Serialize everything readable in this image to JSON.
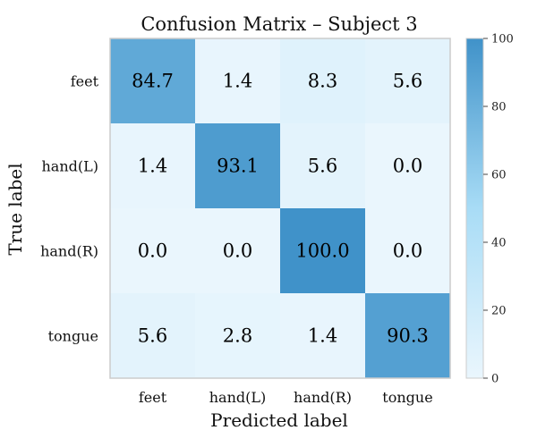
{
  "chart_data": {
    "type": "heatmap",
    "title": "Confusion Matrix – Subject 3",
    "xlabel": "Predicted label",
    "ylabel": "True label",
    "x_categories": [
      "feet",
      "hand(L)",
      "hand(R)",
      "tongue"
    ],
    "y_categories": [
      "feet",
      "hand(L)",
      "hand(R)",
      "tongue"
    ],
    "values": [
      [
        84.7,
        1.4,
        8.3,
        5.6
      ],
      [
        1.4,
        93.1,
        5.6,
        0.0
      ],
      [
        0.0,
        0.0,
        100.0,
        0.0
      ],
      [
        5.6,
        2.8,
        1.4,
        90.3
      ]
    ],
    "value_labels": [
      [
        "84.7",
        "1.4",
        "8.3",
        "5.6"
      ],
      [
        "1.4",
        "93.1",
        "5.6",
        "0.0"
      ],
      [
        "0.0",
        "0.0",
        "100.0",
        "0.0"
      ],
      [
        "5.6",
        "2.8",
        "1.4",
        "90.3"
      ]
    ],
    "colorbar": {
      "range": [
        0,
        100
      ],
      "ticks": [
        0,
        20,
        40,
        60,
        80,
        100
      ],
      "tick_labels": [
        "0",
        "20",
        "40",
        "60",
        "80",
        "100"
      ],
      "colors": [
        "#eaf6fd",
        "#a8dcf6",
        "#4092c9"
      ]
    },
    "grid": false
  }
}
